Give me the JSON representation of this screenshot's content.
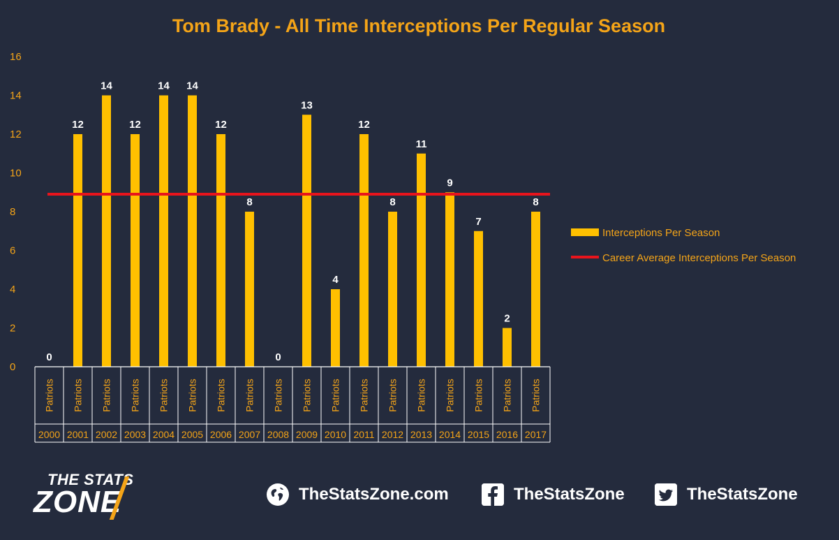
{
  "chart_data": {
    "type": "bar",
    "title": "Tom Brady - All Time Interceptions Per Regular Season",
    "categories": [
      "2000",
      "2001",
      "2002",
      "2003",
      "2004",
      "2005",
      "2006",
      "2007",
      "2008",
      "2009",
      "2010",
      "2011",
      "2012",
      "2013",
      "2014",
      "2015",
      "2016",
      "2017"
    ],
    "team_labels": [
      "Patriots",
      "Patriots",
      "Patriots",
      "Patriots",
      "Patriots",
      "Patriots",
      "Patriots",
      "Patriots",
      "Patriots",
      "Patriots",
      "Patriots",
      "Patriots",
      "Patriots",
      "Patriots",
      "Patriots",
      "Patriots",
      "Patriots",
      "Patriots"
    ],
    "series": [
      {
        "name": "Interceptions Per Season",
        "type": "bar",
        "color": "#ffc000",
        "values": [
          0,
          12,
          14,
          12,
          14,
          14,
          12,
          8,
          0,
          13,
          4,
          12,
          8,
          11,
          9,
          7,
          2,
          8
        ]
      },
      {
        "name": "Career Average Interceptions Per Season",
        "type": "line",
        "color": "#e8141c",
        "value": 8.9
      }
    ],
    "ylim": [
      0,
      16
    ],
    "yticks": [
      0,
      2,
      4,
      6,
      8,
      10,
      12,
      14,
      16
    ],
    "grid": false,
    "legend_position": "right"
  },
  "footer": {
    "logo_top": "THE STATS",
    "logo_bottom": "ZONE",
    "website": "TheStatsZone.com",
    "facebook": "TheStatsZone",
    "twitter": "TheStatsZone",
    "colors": {
      "accent": "#f4a418",
      "background": "#242b3d"
    }
  }
}
